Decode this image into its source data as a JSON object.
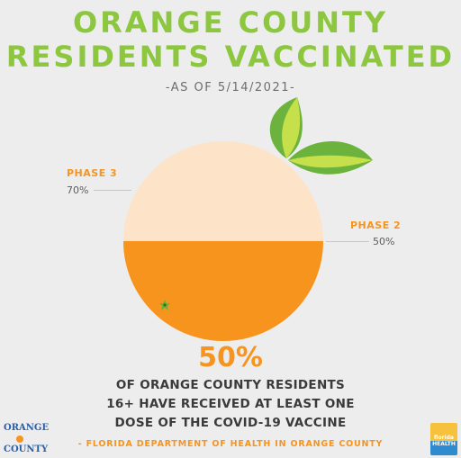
{
  "title_line1": "ORANGE COUNTY",
  "title_line2": "RESIDENTS VACCINATED",
  "as_of": "-AS OF 5/14/2021-",
  "phase3": {
    "label": "PHASE 3",
    "value": "70%"
  },
  "phase2": {
    "label": "PHASE 2",
    "value": "50%"
  },
  "fill_fraction": 0.5,
  "big_percent": "50%",
  "description": [
    "OF ORANGE COUNTY RESIDENTS",
    "16+ HAVE RECEIVED AT LEAST ONE",
    "DOSE OF THE COVID-19 VACCINE"
  ],
  "source": "- FLORIDA DEPARTMENT OF HEALTH IN ORANGE COUNTY",
  "logos": {
    "orange_county": [
      "ORANGE",
      "COUNTY"
    ],
    "florida_health": [
      "florida",
      "HEALTH"
    ]
  },
  "colors": {
    "title_green": "#8dc63f",
    "orange": "#f7941d",
    "orange_light": "#fde3c8",
    "leaf_dark": "#6cb33e",
    "leaf_light": "#c5e04a"
  }
}
